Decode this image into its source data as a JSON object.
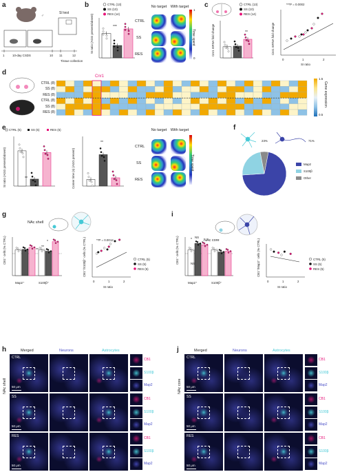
{
  "colors": {
    "ctrl": "#ffffff",
    "ss": "#111111",
    "res": "#e8157a",
    "res_fill": "#f6b3cf",
    "map2": "#3b44a8",
    "s100b": "#8fd3e3",
    "other": "#8a8a8a",
    "astro": "#46c9d6",
    "neuron": "#4b4fc7"
  },
  "a": {
    "label": "a",
    "title": "SI test",
    "male_symbol": "♂",
    "timeline": [
      "1",
      "10-day CSDS",
      "10",
      "11",
      "12"
    ],
    "tissue": "Tissue collection"
  },
  "b": {
    "label": "b",
    "legend": [
      "CTRL (13)",
      "SS (10)",
      "RES (14)"
    ],
    "ylabel": "SI ratio (AGG present/absent)",
    "sig": "***",
    "col_titles": [
      "No target",
      "With target"
    ],
    "rows": [
      "CTRL",
      "SS",
      "RES"
    ],
    "colorbar": "Time spent",
    "cb_max": "1",
    "cb_min": "0"
  },
  "c": {
    "label": "c",
    "legend": [
      "CTRL (13)",
      "SS (10)",
      "RES (14)"
    ],
    "ylabel": "Cnr1 mRNA fold change",
    "sig": "**",
    "stat": "***P = 0.0002",
    "ylabel2": "Cnr1 mRNA fold change",
    "xlabel2": "SI ratio"
  },
  "d": {
    "label": "d",
    "gene": "Cnr1",
    "rows": [
      "CTRL (8)",
      "SS (8)",
      "RES (8)",
      "CTRL (8)",
      "SS (8)",
      "RES (8)"
    ],
    "colorbar": "Gene expression",
    "cb_max": "1.5",
    "cb_min": "0.5"
  },
  "e": {
    "label": "e",
    "legend": [
      "CTRL (5)",
      "SS (5)",
      "RES (5)"
    ],
    "ylabel": "SI ratio (AGG present/absent)",
    "ylabel2": "Corner time (s) (AGG present)",
    "sig1": "**",
    "sig2": "**",
    "col_titles": [
      "No target",
      "With target"
    ],
    "rows": [
      "CTRL",
      "SS",
      "RES"
    ],
    "colorbar": "Time spent"
  },
  "f": {
    "label": "f",
    "pct1": "23%",
    "pct2": "71%",
    "legend": [
      "Map2",
      "S100β",
      "Other"
    ]
  },
  "g": {
    "label": "g",
    "region": "NAc shell",
    "ylabel": "CB1⁺ cells (% CTRL)",
    "xcats": [
      "Map2⁺",
      "S100β⁺"
    ],
    "sigs": [
      "*",
      "**",
      "**"
    ],
    "stat": "**P = 0.0012",
    "ylabel2": "CB1⁺/S100β⁺ cells (% CTRL)",
    "xlabel2": "SI ratio",
    "legend": [
      "CTRL (5)",
      "SS (5)",
      "RES (5)"
    ]
  },
  "i": {
    "label": "i",
    "region": "NAc core",
    "ylabel": "CB1⁺ cells (% CTRL)",
    "xcats": [
      "Map2⁺",
      "S100β⁺"
    ],
    "sigs": [
      "*",
      "NS",
      "*",
      "NS"
    ],
    "ylabel2": "CB1⁺/Map2⁺ cells (% CTRL)",
    "xlabel2": "SI ratio",
    "legend": [
      "CTRL (5)",
      "SS (5)",
      "RES (5)"
    ]
  },
  "h": {
    "label": "h",
    "cols": [
      "Merged",
      "Neurons",
      "Astrocytes"
    ],
    "rows": [
      "CTRL",
      "SS",
      "RES"
    ],
    "side": [
      "CB1",
      "S100β",
      "Map2"
    ],
    "scale": "50 μm",
    "region": "NAc shell"
  },
  "j": {
    "label": "j",
    "cols": [
      "Merged",
      "Neurons",
      "Astrocytes"
    ],
    "rows": [
      "CTRL",
      "SS",
      "RES"
    ],
    "side": [
      "CB1",
      "S100β",
      "Map2"
    ],
    "scale": "50 μm",
    "region": "NAc core"
  },
  "chart_data": [
    {
      "type": "bar",
      "panel": "b",
      "categories": [
        "CTRL",
        "SS",
        "RES"
      ],
      "values": [
        1.22,
        0.62,
        1.45
      ],
      "ylabel": "SI ratio (AGG present/absent)",
      "ylim": [
        0,
        2
      ]
    },
    {
      "type": "bar",
      "panel": "c",
      "categories": [
        "CTRL",
        "SS",
        "RES"
      ],
      "values": [
        0.9,
        0.95,
        1.5
      ],
      "ylabel": "Cnr1 mRNA fold change",
      "ylim": [
        0,
        3
      ]
    },
    {
      "type": "scatter",
      "panel": "c",
      "x": [
        0.3,
        0.5,
        0.7,
        0.9,
        1.0,
        1.1,
        1.2,
        1.3,
        1.5,
        1.6,
        1.8,
        2.0
      ],
      "y": [
        0.7,
        0.8,
        0.9,
        0.9,
        1.0,
        1.0,
        1.1,
        1.2,
        1.3,
        1.5,
        1.8,
        2.0
      ],
      "xlabel": "SI ratio",
      "ylabel": "Cnr1 mRNA fold change"
    },
    {
      "type": "bar",
      "panel": "e",
      "categories": [
        "CTRL",
        "SS",
        "RES"
      ],
      "values": [
        1.42,
        0.28,
        1.35
      ],
      "ylabel": "SI ratio (AGG present/absent)",
      "ylim": [
        0,
        2
      ]
    },
    {
      "type": "bar",
      "panel": "e",
      "categories": [
        "CTRL",
        "SS",
        "RES"
      ],
      "values": [
        20,
        95,
        25
      ],
      "ylabel": "Corner time (s) (AGG present)",
      "ylim": [
        0,
        150
      ]
    },
    {
      "type": "pie",
      "panel": "f",
      "categories": [
        "Map2",
        "S100β",
        "Other"
      ],
      "values": [
        71,
        23,
        6
      ]
    },
    {
      "type": "bar",
      "panel": "g",
      "categories": [
        "Map2⁺",
        "S100β⁺"
      ],
      "series": [
        {
          "name": "CTRL (5)",
          "values": [
            100,
            100
          ]
        },
        {
          "name": "SS (5)",
          "values": [
            102,
            95
          ]
        },
        {
          "name": "RES (5)",
          "values": [
            110,
            132
          ]
        }
      ],
      "ylabel": "CB1⁺ cells (% CTRL)",
      "ylim": [
        0,
        150
      ]
    },
    {
      "type": "scatter",
      "panel": "g",
      "x": [
        0.3,
        0.4,
        0.6,
        0.8,
        1.0,
        1.1,
        1.2,
        1.5,
        1.8
      ],
      "y": [
        85,
        90,
        95,
        105,
        100,
        110,
        120,
        130,
        135
      ],
      "xlabel": "SI ratio",
      "ylabel": "CB1⁺/S100β⁺ cells (% CTRL)"
    },
    {
      "type": "bar",
      "panel": "i",
      "categories": [
        "Map2⁺",
        "S100β⁺"
      ],
      "series": [
        {
          "name": "CTRL (5)",
          "values": [
            100,
            100
          ]
        },
        {
          "name": "SS (5)",
          "values": [
            125,
            92
          ]
        },
        {
          "name": "RES (5)",
          "values": [
            120,
            95
          ]
        }
      ],
      "ylabel": "CB1⁺ cells (% CTRL)",
      "ylim": [
        0,
        150
      ]
    },
    {
      "type": "scatter",
      "panel": "i",
      "x": [
        0.3,
        0.5,
        0.8,
        1.0,
        1.2,
        1.6
      ],
      "y": [
        125,
        115,
        110,
        100,
        115,
        105
      ],
      "xlabel": "SI ratio",
      "ylabel": "CB1⁺/Map2⁺ cells (% CTRL)"
    }
  ]
}
